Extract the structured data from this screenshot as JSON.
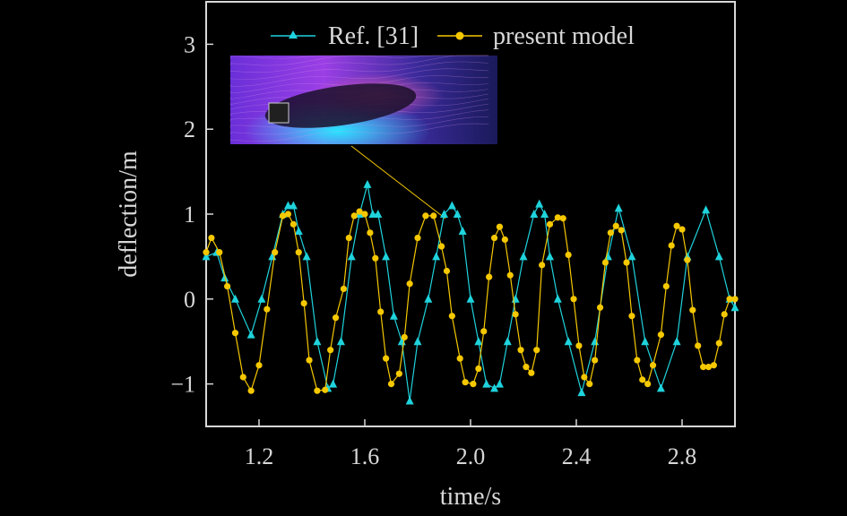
{
  "chart_data": {
    "type": "line",
    "xlabel": "time/s",
    "ylabel": "deflection/m",
    "xlim": [
      1.0,
      3.0
    ],
    "ylim": [
      -1.5,
      3.5
    ],
    "xticks": [
      1.2,
      1.6,
      2.0,
      2.4,
      2.8
    ],
    "xtick_labels": [
      "1.2",
      "1.6",
      "2.0",
      "2.4",
      "2.8"
    ],
    "yticks": [
      -1,
      0,
      1,
      2,
      3
    ],
    "ytick_labels": [
      "−1",
      "0",
      "1",
      "2",
      "3"
    ],
    "grid": false,
    "legend_position": "top",
    "inset": "flow field visualization with arrow from inset to a data point near t=1.9",
    "colors": {
      "ref": "#1fd3dc",
      "present": "#f5c800",
      "axis": "#d8d8d8",
      "background": "#000000"
    },
    "series": [
      {
        "name": "Ref. [31]",
        "marker": "triangle",
        "x": [
          1.0,
          1.04,
          1.07,
          1.11,
          1.17,
          1.21,
          1.25,
          1.29,
          1.31,
          1.33,
          1.35,
          1.38,
          1.42,
          1.46,
          1.48,
          1.51,
          1.55,
          1.58,
          1.61,
          1.63,
          1.65,
          1.68,
          1.71,
          1.74,
          1.77,
          1.8,
          1.84,
          1.87,
          1.9,
          1.93,
          1.95,
          1.97,
          2.0,
          2.03,
          2.06,
          2.09,
          2.11,
          2.14,
          2.17,
          2.2,
          2.24,
          2.26,
          2.28,
          2.3,
          2.33,
          2.37,
          2.42,
          2.47,
          2.52,
          2.56,
          2.61,
          2.66,
          2.72,
          2.78,
          2.82,
          2.89,
          2.94,
          2.98,
          3.0
        ],
        "values": [
          0.5,
          0.55,
          0.25,
          0.0,
          -0.42,
          0.0,
          0.5,
          1.0,
          1.1,
          1.1,
          0.8,
          0.5,
          -0.5,
          -1.05,
          -1.0,
          -0.5,
          0.5,
          1.0,
          1.35,
          1.0,
          1.0,
          0.5,
          -0.2,
          -0.5,
          -1.2,
          -0.5,
          0.0,
          0.5,
          1.0,
          1.1,
          1.0,
          0.8,
          0.0,
          -0.5,
          -1.0,
          -1.05,
          -1.0,
          -0.5,
          0.0,
          0.5,
          1.0,
          1.12,
          1.0,
          0.5,
          0.0,
          -0.5,
          -1.1,
          -0.5,
          0.5,
          1.07,
          0.5,
          -0.5,
          -1.05,
          -0.5,
          0.5,
          1.05,
          0.5,
          0.0,
          -0.1
        ]
      },
      {
        "name": "present model",
        "marker": "circle",
        "x": [
          1.0,
          1.02,
          1.05,
          1.08,
          1.11,
          1.14,
          1.17,
          1.2,
          1.23,
          1.26,
          1.29,
          1.31,
          1.33,
          1.35,
          1.37,
          1.39,
          1.42,
          1.45,
          1.47,
          1.49,
          1.52,
          1.54,
          1.56,
          1.58,
          1.6,
          1.62,
          1.64,
          1.66,
          1.68,
          1.7,
          1.73,
          1.75,
          1.77,
          1.8,
          1.83,
          1.86,
          1.89,
          1.91,
          1.93,
          1.96,
          1.98,
          2.01,
          2.03,
          2.05,
          2.07,
          2.09,
          2.11,
          2.13,
          2.15,
          2.17,
          2.19,
          2.21,
          2.23,
          2.25,
          2.27,
          2.3,
          2.33,
          2.35,
          2.37,
          2.39,
          2.41,
          2.43,
          2.45,
          2.47,
          2.49,
          2.51,
          2.53,
          2.55,
          2.57,
          2.59,
          2.61,
          2.63,
          2.65,
          2.67,
          2.69,
          2.72,
          2.74,
          2.76,
          2.78,
          2.8,
          2.82,
          2.84,
          2.86,
          2.88,
          2.9,
          2.92,
          2.94,
          2.96,
          2.98,
          3.0
        ],
        "values": [
          0.55,
          0.72,
          0.55,
          0.15,
          -0.4,
          -0.92,
          -1.08,
          -0.78,
          -0.12,
          0.55,
          0.98,
          1.0,
          0.88,
          0.55,
          -0.05,
          -0.72,
          -1.08,
          -1.07,
          -0.6,
          -0.22,
          0.12,
          0.72,
          0.98,
          1.03,
          1.0,
          0.78,
          0.48,
          -0.15,
          -0.7,
          -1.0,
          -0.88,
          -0.45,
          0.18,
          0.72,
          0.98,
          0.98,
          0.62,
          0.33,
          -0.2,
          -0.7,
          -0.98,
          -1.0,
          -0.82,
          -0.38,
          0.26,
          0.72,
          0.85,
          0.7,
          0.28,
          -0.18,
          -0.6,
          -0.8,
          -0.87,
          -0.6,
          0.4,
          0.88,
          0.96,
          0.95,
          0.52,
          0.0,
          -0.55,
          -0.92,
          -1.0,
          -0.72,
          -0.1,
          0.43,
          0.78,
          0.86,
          0.81,
          0.43,
          -0.2,
          -0.72,
          -0.95,
          -1.0,
          -0.78,
          -0.42,
          0.15,
          0.63,
          0.86,
          0.82,
          0.46,
          -0.13,
          -0.55,
          -0.8,
          -0.8,
          -0.78,
          -0.52,
          -0.18,
          0.0,
          0.0
        ]
      }
    ]
  }
}
